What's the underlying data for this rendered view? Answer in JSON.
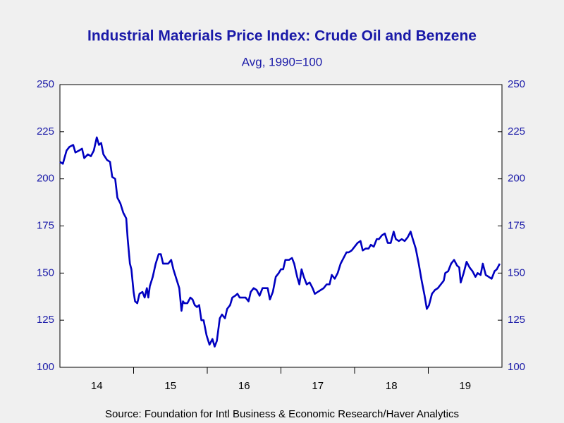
{
  "chart_data": {
    "type": "line",
    "title": "Industrial Materials Price Index: Crude Oil and Benzene",
    "subtitle": "Avg, 1990=100",
    "source": "Source:  Foundation for Intl Business & Economic Research/Haver Analytics",
    "xlim": [
      14,
      20
    ],
    "xticks": [
      {
        "value": 14.5,
        "label": "14"
      },
      {
        "value": 15.5,
        "label": "15"
      },
      {
        "value": 16.5,
        "label": "16"
      },
      {
        "value": 17.5,
        "label": "17"
      },
      {
        "value": 18.5,
        "label": "18"
      },
      {
        "value": 19.5,
        "label": "19"
      }
    ],
    "xtick_marks": [
      15,
      16,
      17,
      18,
      19
    ],
    "ylim": [
      100,
      250
    ],
    "yticks": [
      100,
      125,
      150,
      175,
      200,
      225,
      250
    ],
    "y2lim": [
      100,
      250
    ],
    "y2ticks": [
      100,
      125,
      150,
      175,
      200,
      225,
      250
    ],
    "x": [
      14.0,
      14.04,
      14.09,
      14.13,
      14.18,
      14.21,
      14.26,
      14.3,
      14.33,
      14.38,
      14.42,
      14.46,
      14.5,
      14.53,
      14.56,
      14.59,
      14.64,
      14.68,
      14.71,
      14.75,
      14.78,
      14.82,
      14.86,
      14.9,
      14.92,
      14.95,
      14.97,
      15.0,
      15.02,
      15.05,
      15.08,
      15.12,
      15.15,
      15.18,
      15.2,
      15.22,
      15.26,
      15.3,
      15.34,
      15.37,
      15.4,
      15.44,
      15.47,
      15.51,
      15.54,
      15.58,
      15.62,
      15.65,
      15.67,
      15.69,
      15.73,
      15.77,
      15.8,
      15.83,
      15.86,
      15.89,
      15.92,
      15.95,
      15.97,
      15.99,
      16.03,
      16.07,
      16.1,
      16.13,
      16.17,
      16.2,
      16.24,
      16.27,
      16.31,
      16.34,
      16.38,
      16.41,
      16.44,
      16.48,
      16.52,
      16.56,
      16.59,
      16.63,
      16.67,
      16.71,
      16.75,
      16.78,
      16.82,
      16.85,
      16.89,
      16.93,
      16.97,
      17.0,
      17.03,
      17.06,
      17.11,
      17.15,
      17.18,
      17.22,
      17.25,
      17.28,
      17.31,
      17.35,
      17.39,
      17.43,
      17.46,
      17.5,
      17.54,
      17.58,
      17.62,
      17.66,
      17.69,
      17.73,
      17.77,
      17.81,
      17.85,
      17.89,
      17.92,
      17.96,
      18.0,
      18.04,
      18.08,
      18.11,
      18.15,
      18.19,
      18.22,
      18.26,
      18.3,
      18.33,
      18.37,
      18.41,
      18.45,
      18.49,
      18.53,
      18.56,
      18.6,
      18.64,
      18.68,
      18.72,
      18.76,
      18.79,
      18.83,
      18.87,
      18.91,
      18.95,
      18.98,
      19.01,
      19.05,
      19.09,
      19.13,
      19.17,
      19.21,
      19.23,
      19.27,
      19.31,
      19.35,
      19.39,
      19.42,
      19.44,
      19.48,
      19.52,
      19.56,
      19.6,
      19.64,
      19.67,
      19.71,
      19.74,
      19.78,
      19.82,
      19.86,
      19.9,
      19.93,
      19.97
    ],
    "series": [
      {
        "color": "#0000c0",
        "values": [
          209,
          208,
          215,
          217,
          218,
          214,
          215,
          216,
          211,
          213,
          212,
          215,
          222,
          218,
          219,
          213,
          210,
          209,
          201,
          200,
          190,
          187,
          182,
          179,
          168,
          155,
          152,
          140,
          135,
          134,
          139,
          140,
          137,
          142,
          137,
          143,
          148,
          155,
          160,
          160,
          155,
          155,
          155,
          157,
          152,
          147,
          142,
          130,
          135,
          134,
          134,
          137,
          136,
          133,
          132,
          133,
          125,
          125,
          121,
          117,
          112,
          115,
          111,
          114,
          126,
          128,
          126,
          131,
          133,
          137,
          138,
          139,
          137,
          137,
          137,
          135,
          140,
          142,
          141,
          138,
          142,
          142,
          142,
          136,
          140,
          148,
          150,
          152,
          152,
          157,
          157,
          158,
          155,
          148,
          144,
          152,
          148,
          144,
          145,
          142,
          139,
          140,
          141,
          142,
          144,
          144,
          149,
          147,
          150,
          155,
          158,
          161,
          161,
          162,
          164,
          166,
          167,
          162,
          163,
          163,
          165,
          164,
          168,
          168,
          170,
          171,
          166,
          166,
          172,
          168,
          167,
          168,
          167,
          169,
          172,
          168,
          163,
          155,
          146,
          138,
          131,
          133,
          139,
          141,
          142,
          144,
          146,
          150,
          151,
          155,
          157,
          154,
          153,
          145,
          150,
          156,
          153,
          151,
          148,
          150,
          149,
          155,
          149,
          148,
          147,
          151,
          152,
          155
        ]
      }
    ]
  }
}
